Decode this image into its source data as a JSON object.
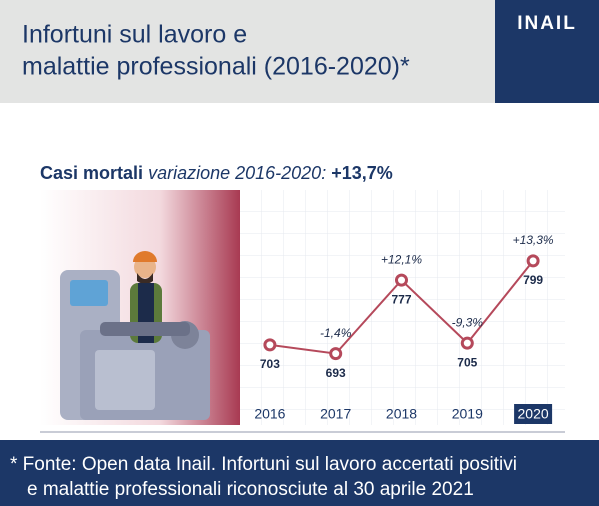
{
  "header": {
    "title_lines": [
      "Infortuni sul lavoro e",
      "malattie professionali (2016-2020)*"
    ],
    "logo": "INAIL"
  },
  "chart_data": {
    "type": "line",
    "title": "Casi mortali",
    "subtitle": "variazione 2016-2020:",
    "total_change": "+13,7%",
    "categories": [
      "2016",
      "2017",
      "2018",
      "2019",
      "2020"
    ],
    "values": [
      703,
      693,
      777,
      705,
      799
    ],
    "annotations": [
      null,
      "-1,4%",
      "+12,1%",
      "-9,3%",
      "+13,3%"
    ],
    "color": "#b5495b",
    "ylim": [
      640,
      880
    ]
  },
  "footer": {
    "lines": [
      "* Fonte: Open data Inail. Infortuni sul lavoro accertati positivi",
      "e malattie professionali riconosciute al 30 aprile 2021"
    ]
  }
}
